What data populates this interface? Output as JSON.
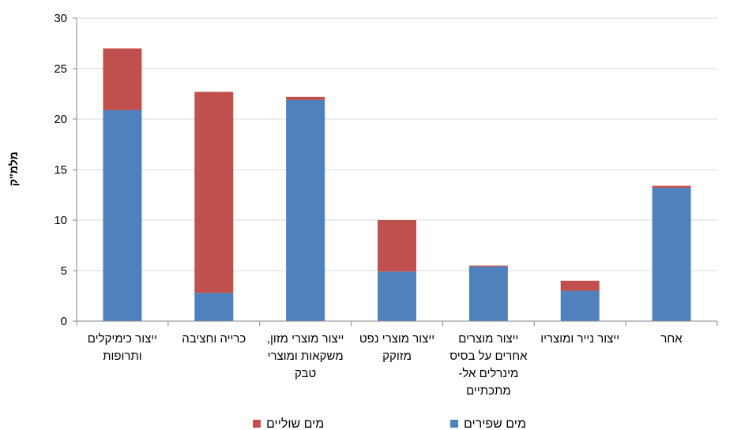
{
  "chart_data": {
    "type": "bar",
    "stacked": true,
    "ylabel": "מלמ\"ק",
    "ylim": [
      0,
      30
    ],
    "yticks": [
      0,
      5,
      10,
      15,
      20,
      25,
      30
    ],
    "categories": [
      [
        "ייצור כימיקלים",
        "ותרופות"
      ],
      [
        "כרייה וחציבה"
      ],
      [
        "ייצור מוצרי מזון,",
        "משקאות ומוצרי",
        "טבק"
      ],
      [
        "ייצור מוצרי נפט",
        "מזוקק"
      ],
      [
        "ייצור מוצרים",
        "אחרים על בסיס",
        "מינרלים אל-",
        "מתכתיים"
      ],
      [
        "ייצור נייר ומוצריו"
      ],
      [
        "אחר"
      ]
    ],
    "series": [
      {
        "name": "מים שפירים",
        "color": "#4F81BD",
        "values": [
          20.9,
          2.8,
          21.9,
          4.9,
          5.4,
          3.0,
          13.2
        ]
      },
      {
        "name": "מים שוליים",
        "color": "#C0504D",
        "values": [
          6.1,
          19.9,
          0.3,
          5.1,
          0.1,
          1.0,
          0.2
        ]
      }
    ],
    "grid": true,
    "legend_position": "bottom"
  }
}
